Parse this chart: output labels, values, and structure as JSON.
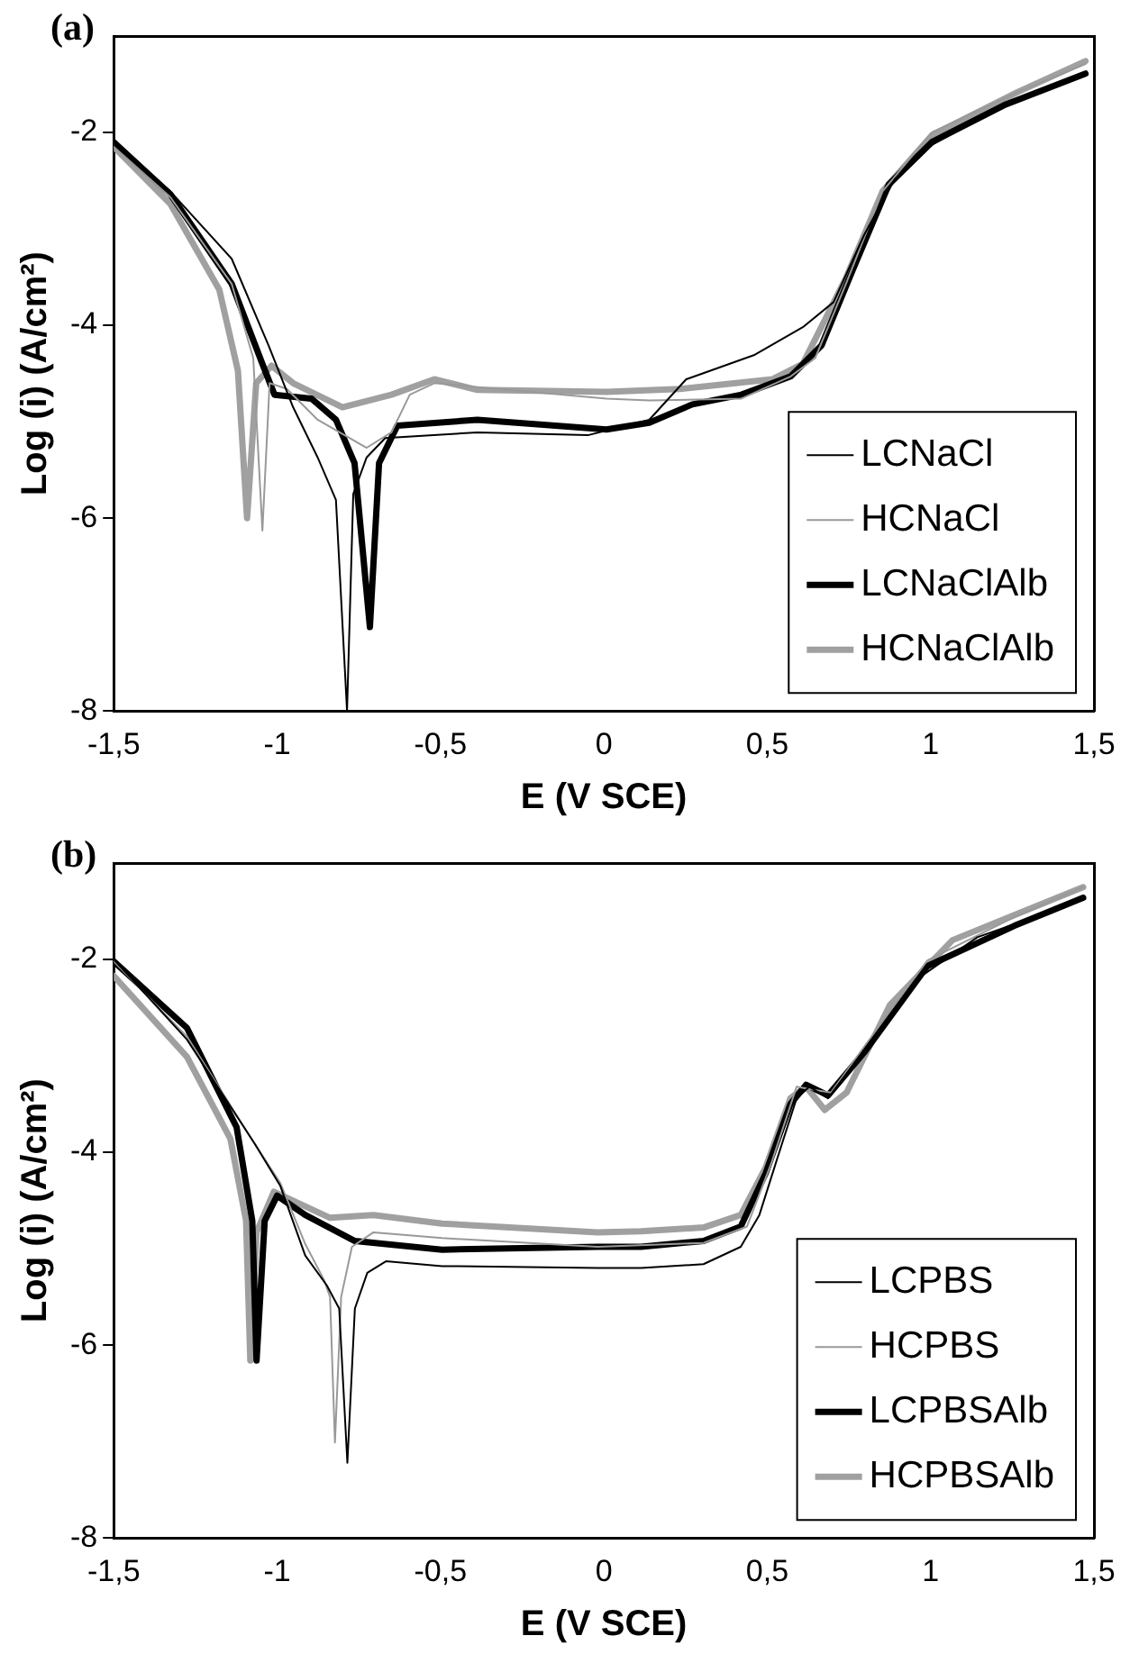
{
  "chart_data": [
    {
      "type": "line",
      "title": "(a)",
      "xlabel": "E (V SCE)",
      "ylabel": "Log (i) (A/cm²)",
      "xlim": [
        -1.5,
        1.5
      ],
      "xticks": [
        {
          "value": -1.5,
          "label": "-1,5"
        },
        -1,
        {
          "value": -0.5,
          "label": "-0,5"
        },
        0,
        {
          "value": 0.5,
          "label": "0,5"
        },
        1,
        {
          "value": 1.5,
          "label": "1,5"
        }
      ],
      "ylim": [
        -8,
        -1
      ],
      "yticks": [
        -8,
        -6,
        -4,
        -2
      ],
      "legend": "bottom right",
      "marker": "none",
      "line_style": "solid",
      "grid": false,
      "series": [
        {
          "name": "LCNaCl",
          "color": "#000000",
          "x": [
            -1.5,
            -1.327,
            -1.139,
            -1.026,
            -0.951,
            -0.876,
            -0.82,
            -0.786,
            -0.767,
            -0.726,
            -0.669,
            -0.387,
            -0.049,
            0.139,
            0.252,
            0.459,
            0.609,
            0.703,
            0.797,
            0.891,
            1.004,
            1.173,
            1.474
          ],
          "values": [
            -2.1,
            -2.61,
            -3.31,
            -4.21,
            -4.85,
            -5.37,
            -5.81,
            -8,
            -5.75,
            -5.37,
            -5.17,
            -5.11,
            -5.14,
            -4.98,
            -4.56,
            -4.31,
            -4.02,
            -3.76,
            -3.06,
            -2.48,
            -2.13,
            -1.81,
            -1.39
          ]
        },
        {
          "name": "HCNaCl",
          "color": "#999999",
          "x": [
            -1.5,
            -1.327,
            -1.139,
            -1.073,
            -1.045,
            -1.023,
            -0.97,
            -0.876,
            -0.726,
            -0.65,
            -0.594,
            -0.519,
            0.008,
            0.139,
            0.421,
            0.572,
            0.647,
            0.741,
            0.853,
            1.004,
            1.267,
            1.474
          ],
          "values": [
            -2.15,
            -2.67,
            -3.57,
            -4.34,
            -6.13,
            -4.6,
            -4.66,
            -4.98,
            -5.27,
            -5.11,
            -4.72,
            -4.6,
            -4.76,
            -4.78,
            -4.76,
            -4.53,
            -4.34,
            -3.57,
            -2.61,
            -2.0,
            -1.58,
            -1.29
          ]
        },
        {
          "name": "LCNaClAlb",
          "color": "#000000",
          "x": [
            -1.5,
            -1.327,
            -1.139,
            -1.045,
            -1.008,
            -0.895,
            -0.82,
            -0.763,
            -0.716,
            -0.688,
            -0.632,
            -0.387,
            0.008,
            0.139,
            0.271,
            0.421,
            0.572,
            0.666,
            0.76,
            0.872,
            1.004,
            1.23,
            1.474
          ],
          "values": [
            -2.1,
            -2.64,
            -3.57,
            -4.4,
            -4.72,
            -4.76,
            -4.98,
            -5.43,
            -7.13,
            -5.43,
            -5.04,
            -4.98,
            -5.08,
            -5.01,
            -4.82,
            -4.72,
            -4.53,
            -4.21,
            -3.44,
            -2.54,
            -2.1,
            -1.71,
            -1.39
          ]
        },
        {
          "name": "HCNaClAlb",
          "color": "#a0a0a0",
          "x": [
            -1.5,
            -1.327,
            -1.177,
            -1.12,
            -1.092,
            -1.064,
            -1.017,
            -0.951,
            -0.8,
            -0.65,
            -0.519,
            -0.387,
            0.008,
            0.233,
            0.515,
            0.609,
            0.741,
            0.853,
            1.004,
            1.267,
            1.474
          ],
          "values": [
            -2.15,
            -2.74,
            -3.63,
            -4.47,
            -6.0,
            -4.6,
            -4.42,
            -4.6,
            -4.85,
            -4.72,
            -4.56,
            -4.67,
            -4.69,
            -4.66,
            -4.56,
            -4.4,
            -3.51,
            -2.61,
            -2.03,
            -1.58,
            -1.26
          ]
        }
      ]
    },
    {
      "type": "line",
      "title": "(b)",
      "xlabel": "E (V SCE)",
      "ylabel": "Log (i) (A/cm²)",
      "xlim": [
        -1.5,
        1.5
      ],
      "xticks": [
        {
          "value": -1.5,
          "label": "-1,5"
        },
        -1,
        {
          "value": -0.5,
          "label": "-0,5"
        },
        0,
        {
          "value": 0.5,
          "label": "0,5"
        },
        1,
        {
          "value": 1.5,
          "label": "1,5"
        }
      ],
      "ylim": [
        -8,
        -1
      ],
      "yticks": [
        -8,
        -6,
        -4,
        -2
      ],
      "legend": "bottom right",
      "marker": "none",
      "line_style": "solid",
      "grid": false,
      "series": [
        {
          "name": "LCPBS",
          "color": "#000000",
          "x": [
            -1.5,
            -1.276,
            -1.067,
            -0.99,
            -0.914,
            -0.848,
            -0.81,
            -0.785,
            -0.762,
            -0.724,
            -0.667,
            -0.495,
            -0.019,
            0.114,
            0.305,
            0.419,
            0.476,
            0.533,
            0.59,
            0.629,
            0.686,
            0.781,
            0.952,
            1.143,
            1.467
          ],
          "values": [
            -2.0,
            -2.83,
            -3.92,
            -4.35,
            -5.07,
            -5.38,
            -5.62,
            -7.22,
            -5.62,
            -5.25,
            -5.13,
            -5.18,
            -5.2,
            -5.2,
            -5.16,
            -4.98,
            -4.65,
            -4.04,
            -3.44,
            -3.32,
            -3.44,
            -3.01,
            -2.22,
            -1.77,
            -1.38
          ]
        },
        {
          "name": "HCPBS",
          "color": "#999999",
          "x": [
            -1.5,
            -1.276,
            -1.067,
            -0.99,
            -0.914,
            -0.857,
            -0.838,
            -0.823,
            -0.804,
            -0.771,
            -0.705,
            -0.495,
            -0.019,
            0.305,
            0.438,
            0.514,
            0.59,
            0.638,
            0.695,
            0.8,
            0.99,
            1.257,
            1.467
          ],
          "values": [
            -2.02,
            -2.8,
            -3.92,
            -4.32,
            -4.95,
            -5.32,
            -5.5,
            -7.01,
            -5.5,
            -4.98,
            -4.83,
            -4.89,
            -4.98,
            -4.94,
            -4.77,
            -4.1,
            -3.32,
            -3.35,
            -3.38,
            -2.89,
            -2.01,
            -1.56,
            -1.25
          ]
        },
        {
          "name": "LCPBSAlb",
          "color": "#000000",
          "x": [
            -1.5,
            -1.276,
            -1.124,
            -1.076,
            -1.063,
            -1.038,
            -1.0,
            -0.914,
            -0.762,
            -0.495,
            -0.019,
            0.114,
            0.305,
            0.419,
            0.495,
            0.571,
            0.619,
            0.686,
            0.8,
            0.99,
            1.257,
            1.467
          ],
          "values": [
            -2.02,
            -2.71,
            -3.74,
            -4.71,
            -6.16,
            -4.71,
            -4.45,
            -4.65,
            -4.92,
            -5.01,
            -4.98,
            -4.98,
            -4.92,
            -4.77,
            -4.22,
            -3.5,
            -3.3,
            -3.41,
            -2.95,
            -2.07,
            -1.65,
            -1.36
          ]
        },
        {
          "name": "HCPBSAlb",
          "color": "#a0a0a0",
          "x": [
            -1.5,
            -1.276,
            -1.143,
            -1.095,
            -1.082,
            -1.063,
            -1.01,
            -0.933,
            -0.838,
            -0.705,
            -0.495,
            -0.019,
            0.114,
            0.305,
            0.419,
            0.495,
            0.571,
            0.619,
            0.676,
            0.743,
            0.876,
            1.067,
            1.467
          ],
          "values": [
            -2.17,
            -3.01,
            -3.86,
            -4.71,
            -6.16,
            -4.83,
            -4.41,
            -4.53,
            -4.68,
            -4.65,
            -4.74,
            -4.83,
            -4.82,
            -4.78,
            -4.65,
            -4.16,
            -3.44,
            -3.32,
            -3.56,
            -3.38,
            -2.47,
            -1.8,
            -1.25
          ]
        }
      ]
    }
  ]
}
